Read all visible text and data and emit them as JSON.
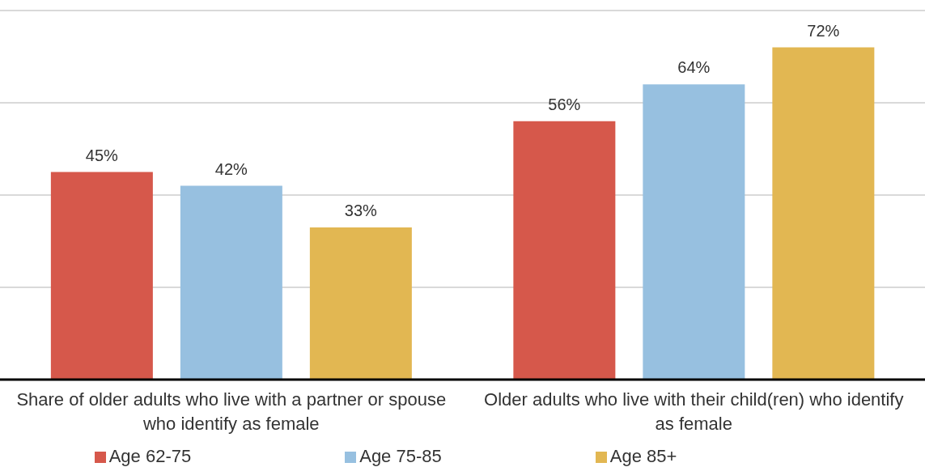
{
  "chart_data": {
    "type": "bar",
    "categories": [
      "Share of older adults who live with a partner or spouse who identify as female",
      "Older adults who live with their child(ren) who identify as female"
    ],
    "series": [
      {
        "name": "Age 62-75",
        "color": "#d6584b",
        "values": [
          45,
          56
        ],
        "value_labels": [
          "45%",
          "56%"
        ]
      },
      {
        "name": "Age 75-85",
        "color": "#97c0e0",
        "values": [
          42,
          64
        ],
        "value_labels": [
          "42%",
          "64%"
        ]
      },
      {
        "name": "Age 85+",
        "color": "#e2b752",
        "values": [
          33,
          72
        ],
        "value_labels": [
          "33%",
          "72%"
        ]
      }
    ],
    "ylim": [
      0,
      80
    ],
    "yticks": [
      {
        "value": 0,
        "label": null
      },
      {
        "value": 20,
        "label": null
      },
      {
        "value": 40,
        "label": null
      },
      {
        "value": 60,
        "label": null
      },
      {
        "value": 80,
        "label": null
      }
    ],
    "grid": "y",
    "legend": "bottom",
    "tick_labels": "x"
  }
}
